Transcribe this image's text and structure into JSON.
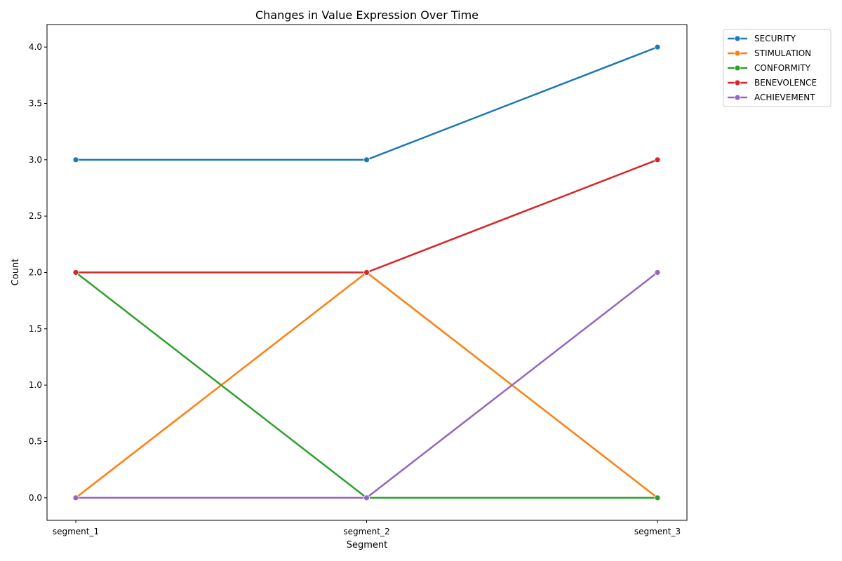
{
  "chart_data": {
    "type": "line",
    "title": "Changes in Value Expression Over Time",
    "xlabel": "Segment",
    "ylabel": "Count",
    "categories": [
      "segment_1",
      "segment_2",
      "segment_3"
    ],
    "ylim": [
      -0.2,
      4.2
    ],
    "yticks": [
      "0.0",
      "0.5",
      "1.0",
      "1.5",
      "2.0",
      "2.5",
      "3.0",
      "3.5",
      "4.0"
    ],
    "grid": false,
    "legend_position": "outside-top-right",
    "series": [
      {
        "name": "SECURITY",
        "color": "#1f77b4",
        "values": [
          3,
          3,
          4
        ]
      },
      {
        "name": "STIMULATION",
        "color": "#ff7f0e",
        "values": [
          0,
          2,
          0
        ]
      },
      {
        "name": "CONFORMITY",
        "color": "#2ca02c",
        "values": [
          2,
          0,
          0
        ]
      },
      {
        "name": "BENEVOLENCE",
        "color": "#d62728",
        "values": [
          2,
          2,
          3
        ]
      },
      {
        "name": "ACHIEVEMENT",
        "color": "#9467bd",
        "values": [
          0,
          0,
          2
        ]
      }
    ]
  }
}
